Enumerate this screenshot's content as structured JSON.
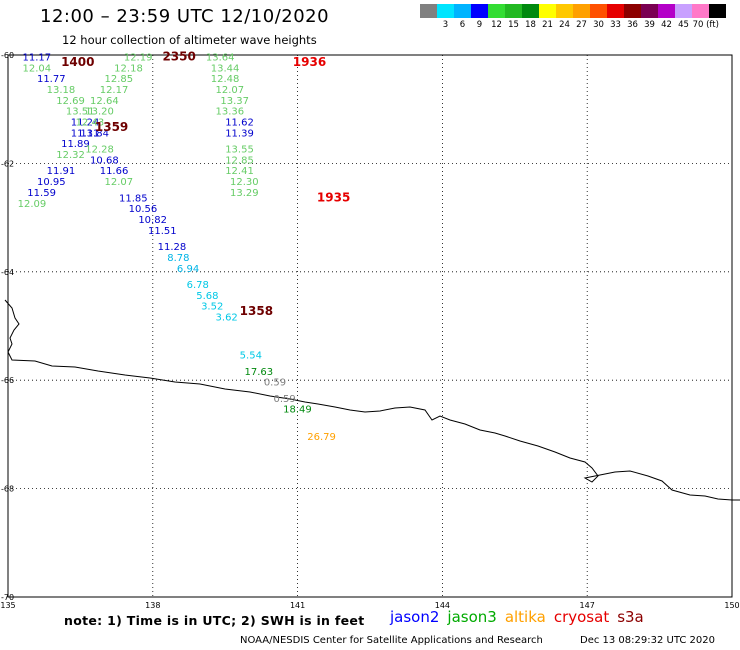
{
  "header": {
    "title": "12:00 – 23:59 UTC 12/10/2020",
    "subtitle": "12 hour collection of altimeter wave heights"
  },
  "legend": {
    "colors": [
      "#808080",
      "#00e5ff",
      "#00b4ff",
      "#0000ff",
      "#33dd33",
      "#22b922",
      "#00890e",
      "#ffff00",
      "#ffc800",
      "#ffa000",
      "#ff5000",
      "#e60000",
      "#8c0000",
      "#7a0052",
      "#b400c8",
      "#c8a0ff",
      "#ff78c8",
      "#000000"
    ],
    "labels": [
      "3",
      "6",
      "9",
      "12",
      "15",
      "18",
      "21",
      "24",
      "27",
      "30",
      "33",
      "36",
      "39",
      "42",
      "45",
      "70 (ft)"
    ]
  },
  "axes": {
    "x_ticks": [
      "135",
      "138",
      "141",
      "144",
      "147",
      "150"
    ],
    "y_ticks": [
      "-60",
      "-62",
      "-64",
      "-66",
      "-68",
      "-70"
    ]
  },
  "map_data": {
    "lon_range": [
      135,
      150
    ],
    "lat_range": [
      -70,
      -60
    ],
    "grid": "dotted",
    "observations": [
      {
        "lon": 135.3,
        "lat": -60.1,
        "text": "11.17",
        "color": "#0000cc"
      },
      {
        "lon": 135.3,
        "lat": -60.3,
        "text": "12.04",
        "color": "#66cc66"
      },
      {
        "lon": 135.6,
        "lat": -60.5,
        "text": "11.77",
        "color": "#0000cc"
      },
      {
        "lon": 135.8,
        "lat": -60.7,
        "text": "13.18",
        "color": "#66cc66"
      },
      {
        "lon": 136.0,
        "lat": -60.9,
        "text": "12.69",
        "color": "#66cc66"
      },
      {
        "lon": 136.2,
        "lat": -61.1,
        "text": "13.51",
        "color": "#66cc66"
      },
      {
        "lon": 136.3,
        "lat": -61.3,
        "text": "11.24",
        "color": "#0000cc"
      },
      {
        "lon": 136.3,
        "lat": -61.5,
        "text": "11.31",
        "color": "#0000cc"
      },
      {
        "lon": 136.1,
        "lat": -61.7,
        "text": "11.89",
        "color": "#0000cc"
      },
      {
        "lon": 136.0,
        "lat": -61.9,
        "text": "12.32",
        "color": "#66cc66"
      },
      {
        "lon": 135.8,
        "lat": -62.2,
        "text": "11.91",
        "color": "#0000cc"
      },
      {
        "lon": 135.6,
        "lat": -62.4,
        "text": "10.95",
        "color": "#0000cc"
      },
      {
        "lon": 135.4,
        "lat": -62.6,
        "text": "11.59",
        "color": "#0000cc"
      },
      {
        "lon": 135.2,
        "lat": -62.8,
        "text": "12.09",
        "color": "#66cc66"
      },
      {
        "lon": 137.4,
        "lat": -60.1,
        "text": "12.19",
        "color": "#66cc66"
      },
      {
        "lon": 137.2,
        "lat": -60.3,
        "text": "12.18",
        "color": "#66cc66"
      },
      {
        "lon": 137.0,
        "lat": -60.5,
        "text": "12.85",
        "color": "#66cc66"
      },
      {
        "lon": 136.9,
        "lat": -60.7,
        "text": "12.17",
        "color": "#66cc66"
      },
      {
        "lon": 136.7,
        "lat": -60.9,
        "text": "12.64",
        "color": "#66cc66"
      },
      {
        "lon": 136.6,
        "lat": -61.1,
        "text": "13.20",
        "color": "#66cc66"
      },
      {
        "lon": 136.4,
        "lat": -61.3,
        "text": "12.43",
        "color": "#66cc66"
      },
      {
        "lon": 136.5,
        "lat": -61.5,
        "text": "11.84",
        "color": "#0000cc"
      },
      {
        "lon": 136.6,
        "lat": -61.8,
        "text": "12.28",
        "color": "#66cc66"
      },
      {
        "lon": 136.7,
        "lat": -62.0,
        "text": "10.68",
        "color": "#0000cc"
      },
      {
        "lon": 136.9,
        "lat": -62.2,
        "text": "11.66",
        "color": "#0000cc"
      },
      {
        "lon": 137.0,
        "lat": -62.4,
        "text": "12.07",
        "color": "#66cc66"
      },
      {
        "lon": 137.3,
        "lat": -62.7,
        "text": "11.85",
        "color": "#0000cc"
      },
      {
        "lon": 137.5,
        "lat": -62.9,
        "text": "10.56",
        "color": "#0000cc"
      },
      {
        "lon": 137.7,
        "lat": -63.1,
        "text": "10.82",
        "color": "#0000cc"
      },
      {
        "lon": 137.9,
        "lat": -63.3,
        "text": "11.51",
        "color": "#0000cc"
      },
      {
        "lon": 138.1,
        "lat": -63.6,
        "text": "11.28",
        "color": "#0000cc"
      },
      {
        "lon": 138.3,
        "lat": -63.8,
        "text": "8.78",
        "color": "#00b4e6"
      },
      {
        "lon": 138.5,
        "lat": -64.0,
        "text": "6.94",
        "color": "#00b4e6"
      },
      {
        "lon": 138.7,
        "lat": -64.3,
        "text": "6.78",
        "color": "#00c8e6"
      },
      {
        "lon": 138.9,
        "lat": -64.5,
        "text": "5.68",
        "color": "#00c8e6"
      },
      {
        "lon": 139.0,
        "lat": -64.7,
        "text": "3.52",
        "color": "#00c8e6"
      },
      {
        "lon": 139.3,
        "lat": -64.9,
        "text": "3.62",
        "color": "#00c8e6"
      },
      {
        "lon": 139.8,
        "lat": -65.6,
        "text": "5.54",
        "color": "#00c8e6"
      },
      {
        "lon": 139.9,
        "lat": -65.9,
        "text": "17.63",
        "color": "#00890e"
      },
      {
        "lon": 140.3,
        "lat": -66.1,
        "text": "0.59",
        "color": "#808080"
      },
      {
        "lon": 140.5,
        "lat": -66.4,
        "text": "0.59",
        "color": "#808080"
      },
      {
        "lon": 140.7,
        "lat": -66.6,
        "text": "18.49",
        "color": "#00890e"
      },
      {
        "lon": 141.2,
        "lat": -67.1,
        "text": "26.79",
        "color": "#ffa000"
      },
      {
        "lon": 139.1,
        "lat": -60.1,
        "text": "13.64",
        "color": "#66cc66"
      },
      {
        "lon": 139.2,
        "lat": -60.3,
        "text": "13.44",
        "color": "#66cc66"
      },
      {
        "lon": 139.2,
        "lat": -60.5,
        "text": "12.48",
        "color": "#66cc66"
      },
      {
        "lon": 139.3,
        "lat": -60.7,
        "text": "12.07",
        "color": "#66cc66"
      },
      {
        "lon": 139.4,
        "lat": -60.9,
        "text": "13.37",
        "color": "#66cc66"
      },
      {
        "lon": 139.3,
        "lat": -61.1,
        "text": "13.36",
        "color": "#66cc66"
      },
      {
        "lon": 139.5,
        "lat": -61.3,
        "text": "11.62",
        "color": "#0000cc"
      },
      {
        "lon": 139.5,
        "lat": -61.5,
        "text": "11.39",
        "color": "#0000cc"
      },
      {
        "lon": 139.5,
        "lat": -61.8,
        "text": "13.55",
        "color": "#66cc66"
      },
      {
        "lon": 139.5,
        "lat": -62.0,
        "text": "12.85",
        "color": "#66cc66"
      },
      {
        "lon": 139.5,
        "lat": -62.2,
        "text": "12.41",
        "color": "#66cc66"
      },
      {
        "lon": 139.6,
        "lat": -62.4,
        "text": "12.30",
        "color": "#66cc66"
      },
      {
        "lon": 139.6,
        "lat": -62.6,
        "text": "13.29",
        "color": "#66cc66"
      }
    ],
    "time_labels": [
      {
        "lon": 136.1,
        "lat": -60.2,
        "text": "1400",
        "color": "#6e0000"
      },
      {
        "lon": 138.2,
        "lat": -60.1,
        "text": "2350",
        "color": "#6e0000"
      },
      {
        "lon": 140.9,
        "lat": -60.2,
        "text": "1936",
        "color": "#e60000"
      },
      {
        "lon": 136.8,
        "lat": -61.4,
        "text": "1359",
        "color": "#6e0000"
      },
      {
        "lon": 141.4,
        "lat": -62.7,
        "text": "1935",
        "color": "#e60000"
      },
      {
        "lon": 139.8,
        "lat": -64.8,
        "text": "1358",
        "color": "#6e0000"
      }
    ]
  },
  "footer": {
    "note": "note: 1) Time is in UTC; 2) SWH is in feet",
    "satellites": [
      {
        "name": "jason2",
        "color": "#0000ff"
      },
      {
        "name": "jason3",
        "color": "#00aa00"
      },
      {
        "name": "altika",
        "color": "#ffa000"
      },
      {
        "name": "cryosat",
        "color": "#e60000"
      },
      {
        "name": "s3a",
        "color": "#8c0000"
      }
    ],
    "credit": "NOAA/NESDIS Center for Satellite Applications and Research",
    "date": "Dec 13 08:29:32 UTC 2020"
  }
}
